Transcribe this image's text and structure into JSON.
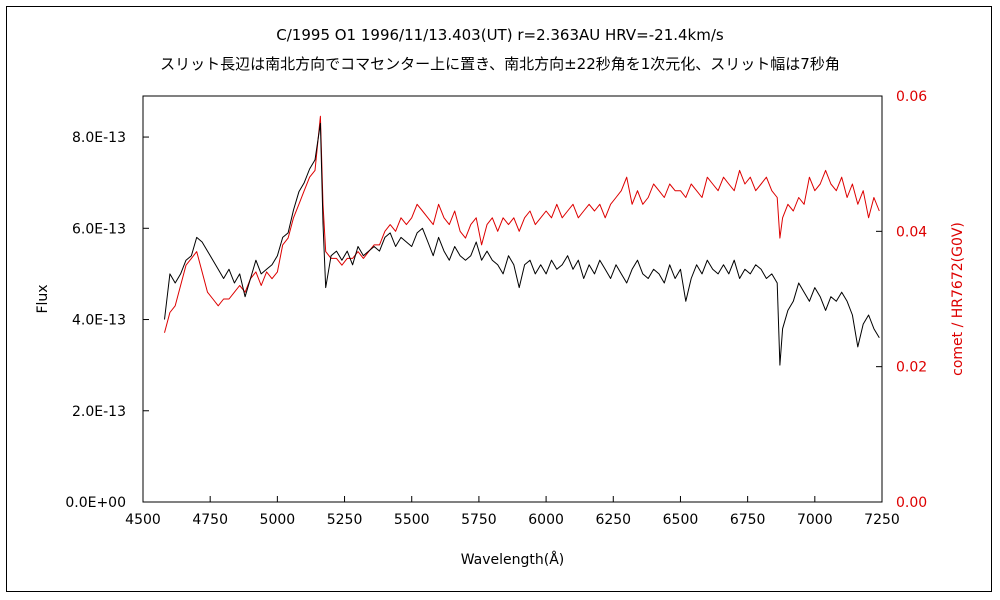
{
  "chart_data": {
    "type": "line",
    "title": "C/1995 O1    1996/11/13.403(UT)    r=2.363AU    HRV=-21.4km/s",
    "subtitle": "スリット長辺は南北方向でコマセンター上に置き、南北方向±22秒角を1次元化、スリット幅は7秒角",
    "xlabel": "Wavelength(Å)",
    "ylabel": "Flux",
    "y2label": "comet / HR7672(G0V)",
    "xlim": [
      4500,
      7250
    ],
    "ylim": [
      0,
      8.9e-13
    ],
    "y2lim": [
      0,
      0.06
    ],
    "xticks": [
      4500,
      4750,
      5000,
      5250,
      5500,
      5750,
      6000,
      6250,
      6500,
      6750,
      7000,
      7250
    ],
    "yticks": [
      0,
      2e-13,
      4e-13,
      6e-13,
      8e-13
    ],
    "yticklabels": [
      "0.0E+00",
      "2.0E-13",
      "4.0E-13",
      "6.0E-13",
      "8.0E-13"
    ],
    "y2ticks": [
      0,
      0.02,
      0.04,
      0.06
    ],
    "y2ticklabels": [
      "0.00",
      "0.02",
      "0.04",
      "0.06"
    ],
    "grid": false,
    "colors": {
      "flux": "#000000",
      "ratio": "#dd0000",
      "right_axis": "#dd0000"
    },
    "series": [
      {
        "axis": "left",
        "x": [
          4580,
          4600,
          4620,
          4640,
          4660,
          4680,
          4700,
          4720,
          4740,
          4760,
          4780,
          4800,
          4820,
          4840,
          4860,
          4880,
          4900,
          4920,
          4940,
          4960,
          4980,
          5000,
          5020,
          5040,
          5060,
          5080,
          5100,
          5120,
          5140,
          5160,
          5170,
          5180,
          5200,
          5220,
          5240,
          5260,
          5280,
          5300,
          5320,
          5340,
          5360,
          5380,
          5400,
          5420,
          5440,
          5460,
          5480,
          5500,
          5520,
          5540,
          5560,
          5580,
          5600,
          5620,
          5640,
          5660,
          5680,
          5700,
          5720,
          5740,
          5760,
          5780,
          5800,
          5820,
          5840,
          5860,
          5880,
          5900,
          5920,
          5940,
          5960,
          5980,
          6000,
          6020,
          6040,
          6060,
          6080,
          6100,
          6120,
          6140,
          6160,
          6180,
          6200,
          6220,
          6240,
          6260,
          6280,
          6300,
          6320,
          6340,
          6360,
          6380,
          6400,
          6420,
          6440,
          6460,
          6480,
          6500,
          6520,
          6540,
          6560,
          6580,
          6600,
          6620,
          6640,
          6660,
          6680,
          6700,
          6720,
          6740,
          6760,
          6780,
          6800,
          6820,
          6840,
          6860,
          6870,
          6880,
          6900,
          6920,
          6940,
          6960,
          6980,
          7000,
          7020,
          7040,
          7060,
          7080,
          7100,
          7120,
          7140,
          7160,
          7180,
          7200,
          7220,
          7240
        ],
        "y": [
          4e-13,
          5e-13,
          4.8e-13,
          5e-13,
          5.3e-13,
          5.4e-13,
          5.8e-13,
          5.7e-13,
          5.5e-13,
          5.3e-13,
          5.1e-13,
          4.9e-13,
          5.1e-13,
          4.8e-13,
          5e-13,
          4.5e-13,
          4.9e-13,
          5.3e-13,
          5e-13,
          5.1e-13,
          5.2e-13,
          5.4e-13,
          5.8e-13,
          5.9e-13,
          6.4e-13,
          6.8e-13,
          7e-13,
          7.3e-13,
          7.5e-13,
          8.3e-13,
          6.1e-13,
          4.7e-13,
          5.4e-13,
          5.5e-13,
          5.3e-13,
          5.5e-13,
          5.2e-13,
          5.6e-13,
          5.4e-13,
          5.5e-13,
          5.6e-13,
          5.5e-13,
          5.8e-13,
          5.9e-13,
          5.6e-13,
          5.8e-13,
          5.7e-13,
          5.6e-13,
          5.9e-13,
          6e-13,
          5.7e-13,
          5.4e-13,
          5.8e-13,
          5.5e-13,
          5.3e-13,
          5.6e-13,
          5.4e-13,
          5.3e-13,
          5.4e-13,
          5.7e-13,
          5.3e-13,
          5.5e-13,
          5.3e-13,
          5.2e-13,
          5e-13,
          5.4e-13,
          5.2e-13,
          4.7e-13,
          5.2e-13,
          5.3e-13,
          5e-13,
          5.2e-13,
          5e-13,
          5.3e-13,
          5.1e-13,
          5.2e-13,
          5.4e-13,
          5.1e-13,
          5.3e-13,
          4.9e-13,
          5.2e-13,
          5e-13,
          5.3e-13,
          5.1e-13,
          4.9e-13,
          5.2e-13,
          5e-13,
          4.8e-13,
          5.1e-13,
          5.3e-13,
          5e-13,
          4.9e-13,
          5.1e-13,
          5e-13,
          4.8e-13,
          5.2e-13,
          4.9e-13,
          5.1e-13,
          4.4e-13,
          4.9e-13,
          5.2e-13,
          5e-13,
          5.3e-13,
          5.1e-13,
          5e-13,
          5.2e-13,
          5e-13,
          5.3e-13,
          4.9e-13,
          5.1e-13,
          5e-13,
          5.2e-13,
          5.1e-13,
          4.9e-13,
          5e-13,
          4.8e-13,
          3e-13,
          3.8e-13,
          4.2e-13,
          4.4e-13,
          4.8e-13,
          4.6e-13,
          4.4e-13,
          4.7e-13,
          4.5e-13,
          4.2e-13,
          4.5e-13,
          4.4e-13,
          4.6e-13,
          4.4e-13,
          4.1e-13,
          3.4e-13,
          3.9e-13,
          4.1e-13,
          3.8e-13,
          3.6e-13
        ]
      },
      {
        "axis": "right",
        "x": [
          4580,
          4600,
          4620,
          4640,
          4660,
          4680,
          4700,
          4720,
          4740,
          4760,
          4780,
          4800,
          4820,
          4840,
          4860,
          4880,
          4900,
          4920,
          4940,
          4960,
          4980,
          5000,
          5020,
          5040,
          5060,
          5080,
          5100,
          5120,
          5140,
          5160,
          5170,
          5180,
          5200,
          5220,
          5240,
          5260,
          5280,
          5300,
          5320,
          5340,
          5360,
          5380,
          5400,
          5420,
          5440,
          5460,
          5480,
          5500,
          5520,
          5540,
          5560,
          5580,
          5600,
          5620,
          5640,
          5660,
          5680,
          5700,
          5720,
          5740,
          5760,
          5780,
          5800,
          5820,
          5840,
          5860,
          5880,
          5900,
          5920,
          5940,
          5960,
          5980,
          6000,
          6020,
          6040,
          6060,
          6080,
          6100,
          6120,
          6140,
          6160,
          6180,
          6200,
          6220,
          6240,
          6260,
          6280,
          6300,
          6320,
          6340,
          6360,
          6380,
          6400,
          6420,
          6440,
          6460,
          6480,
          6500,
          6520,
          6540,
          6560,
          6580,
          6600,
          6620,
          6640,
          6660,
          6680,
          6700,
          6720,
          6740,
          6760,
          6780,
          6800,
          6820,
          6840,
          6860,
          6870,
          6880,
          6900,
          6920,
          6940,
          6960,
          6980,
          7000,
          7020,
          7040,
          7060,
          7080,
          7100,
          7120,
          7140,
          7160,
          7180,
          7200,
          7220,
          7240
        ],
        "y": [
          0.025,
          0.028,
          0.029,
          0.032,
          0.035,
          0.036,
          0.037,
          0.034,
          0.031,
          0.03,
          0.029,
          0.03,
          0.03,
          0.031,
          0.032,
          0.031,
          0.033,
          0.034,
          0.032,
          0.034,
          0.033,
          0.034,
          0.038,
          0.039,
          0.042,
          0.044,
          0.046,
          0.048,
          0.049,
          0.057,
          0.044,
          0.037,
          0.036,
          0.036,
          0.035,
          0.036,
          0.036,
          0.037,
          0.036,
          0.037,
          0.038,
          0.038,
          0.04,
          0.041,
          0.04,
          0.042,
          0.041,
          0.042,
          0.044,
          0.043,
          0.042,
          0.041,
          0.044,
          0.042,
          0.041,
          0.043,
          0.04,
          0.039,
          0.041,
          0.042,
          0.038,
          0.041,
          0.042,
          0.04,
          0.042,
          0.041,
          0.042,
          0.04,
          0.042,
          0.043,
          0.041,
          0.042,
          0.043,
          0.042,
          0.044,
          0.042,
          0.043,
          0.044,
          0.042,
          0.043,
          0.044,
          0.043,
          0.044,
          0.042,
          0.044,
          0.045,
          0.046,
          0.048,
          0.044,
          0.046,
          0.044,
          0.045,
          0.047,
          0.046,
          0.045,
          0.047,
          0.046,
          0.046,
          0.045,
          0.047,
          0.046,
          0.045,
          0.048,
          0.047,
          0.046,
          0.048,
          0.047,
          0.046,
          0.049,
          0.047,
          0.048,
          0.046,
          0.047,
          0.048,
          0.046,
          0.045,
          0.039,
          0.042,
          0.044,
          0.043,
          0.045,
          0.044,
          0.048,
          0.046,
          0.047,
          0.049,
          0.047,
          0.046,
          0.048,
          0.045,
          0.047,
          0.044,
          0.046,
          0.042,
          0.045,
          0.043
        ]
      }
    ]
  }
}
